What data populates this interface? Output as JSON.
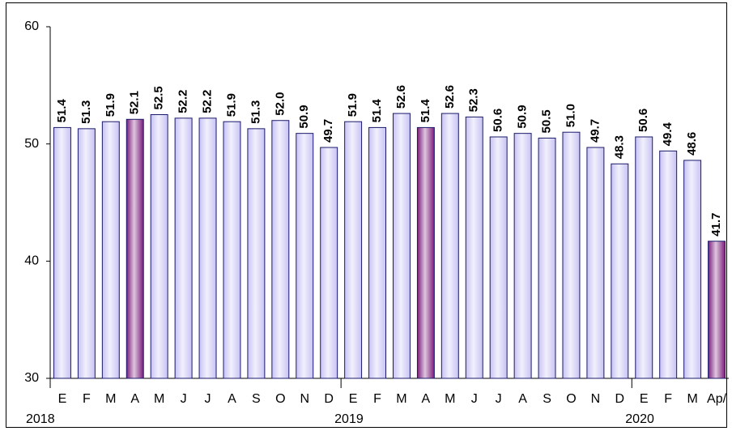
{
  "chart_data": {
    "type": "bar",
    "categories": [
      "E",
      "F",
      "M",
      "A",
      "M",
      "J",
      "J",
      "A",
      "S",
      "O",
      "N",
      "D",
      "E",
      "F",
      "M",
      "A",
      "M",
      "J",
      "J",
      "A",
      "S",
      "O",
      "N",
      "D",
      "E",
      "F",
      "M",
      "Ap/"
    ],
    "years": [
      "2018",
      "2019",
      "2020"
    ],
    "values": [
      51.4,
      51.3,
      51.9,
      52.1,
      52.5,
      52.2,
      52.2,
      51.9,
      51.3,
      52.0,
      50.9,
      49.7,
      51.9,
      51.4,
      52.6,
      51.4,
      52.6,
      52.3,
      50.6,
      50.9,
      50.5,
      51.0,
      49.7,
      48.3,
      50.6,
      49.4,
      48.6,
      41.7
    ],
    "value_labels": [
      "51.4",
      "51.3",
      "51.9",
      "52.1",
      "52.5",
      "52.2",
      "52.2",
      "51.9",
      "51.3",
      "52.0",
      "50.9",
      "49.7",
      "51.9",
      "51.4",
      "52.6",
      "51.4",
      "52.6",
      "52.3",
      "50.6",
      "50.9",
      "50.5",
      "51.0",
      "49.7",
      "48.3",
      "50.6",
      "49.4",
      "48.6",
      "41.7"
    ],
    "colors": [
      "#c8c2f4",
      "#c8c2f4",
      "#c8c2f4",
      "#7a1c7a",
      "#c8c2f4",
      "#c8c2f4",
      "#c8c2f4",
      "#c8c2f4",
      "#c8c2f4",
      "#c8c2f4",
      "#c8c2f4",
      "#c8c2f4",
      "#c8c2f4",
      "#c8c2f4",
      "#c8c2f4",
      "#7a1c7a",
      "#c8c2f4",
      "#c8c2f4",
      "#c8c2f4",
      "#c8c2f4",
      "#c8c2f4",
      "#c8c2f4",
      "#c8c2f4",
      "#c8c2f4",
      "#c8c2f4",
      "#c8c2f4",
      "#c8c2f4",
      "#7a1c7a"
    ],
    "ylim": [
      30,
      60
    ],
    "yticks": [
      30,
      40,
      50,
      60
    ]
  }
}
